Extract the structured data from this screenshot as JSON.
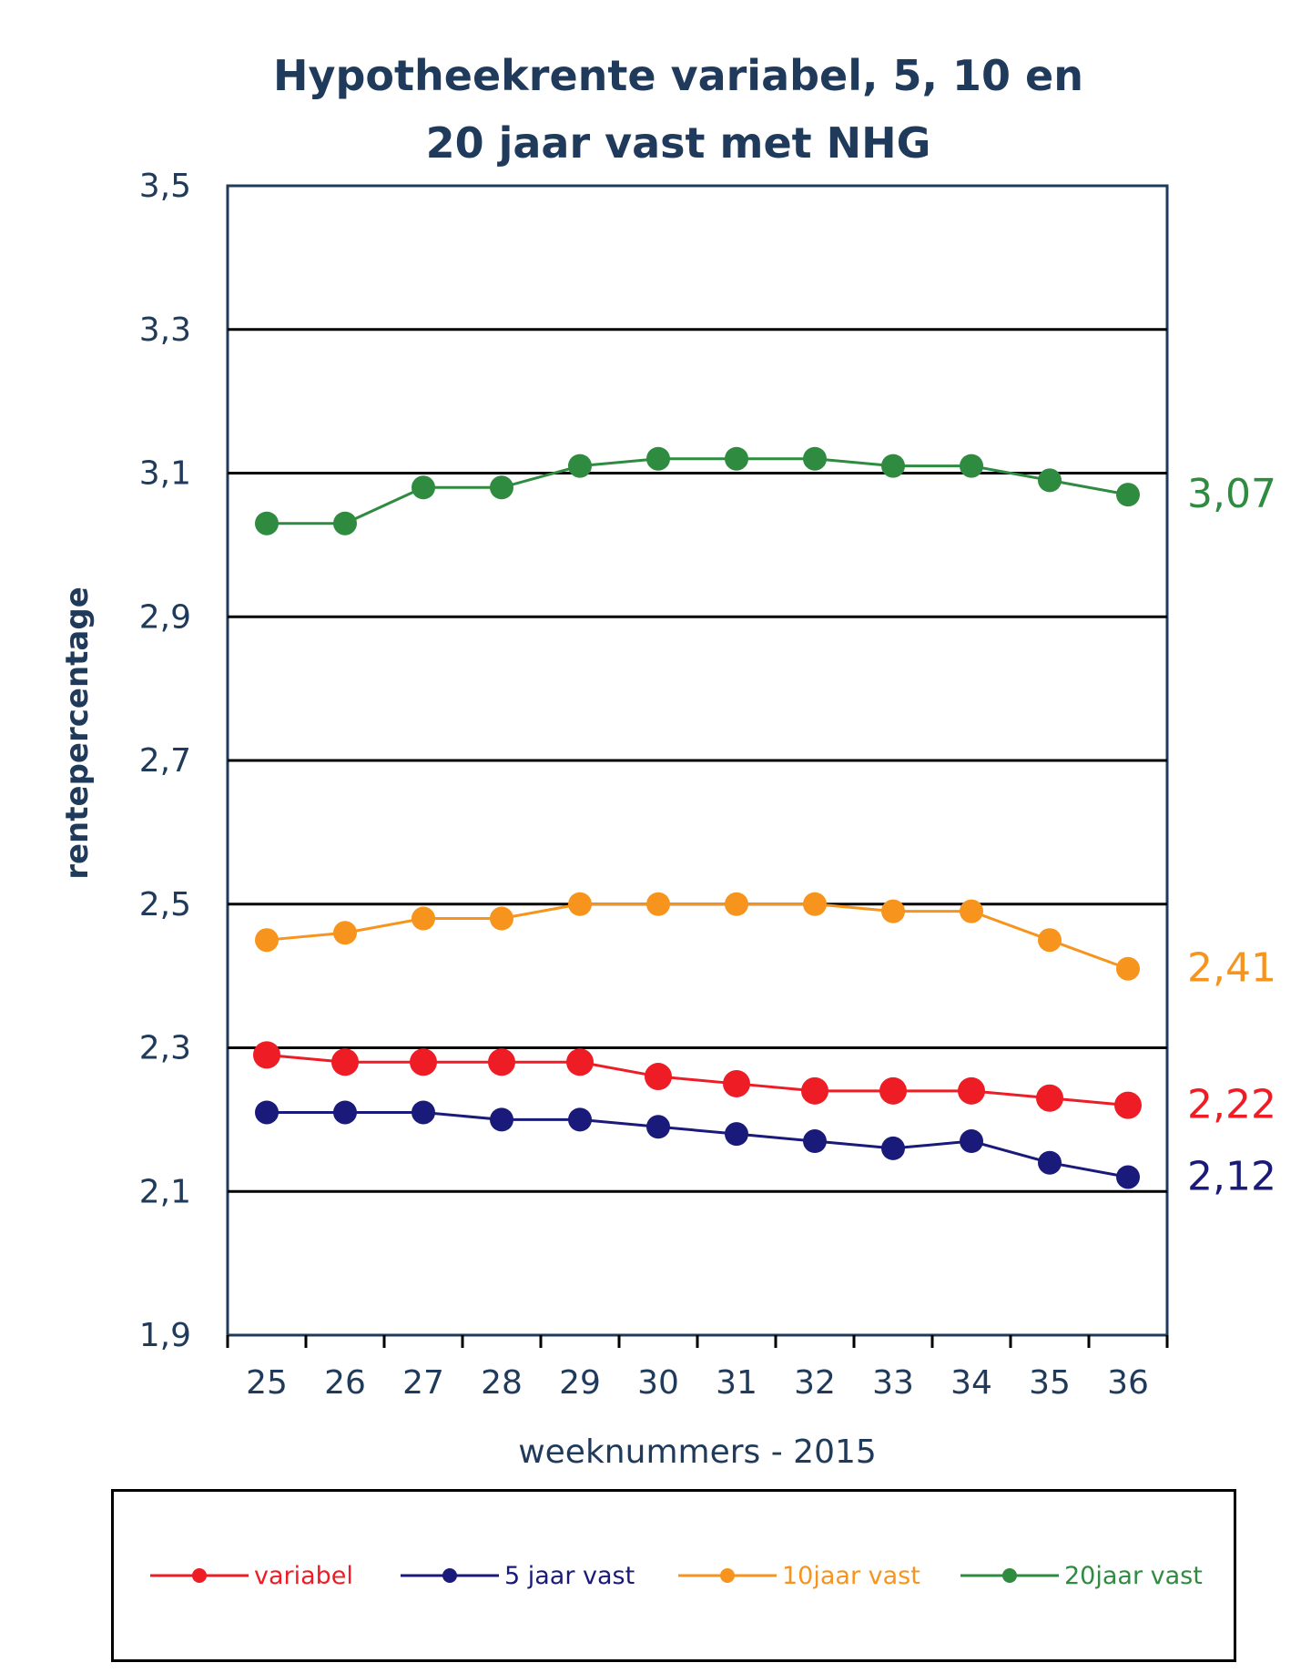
{
  "chart_data": {
    "type": "line",
    "title": [
      "Hypotheekrente variabel, 5, 10 en",
      "20 jaar vast met NHG"
    ],
    "xlabel": "weeknummers - 2015",
    "ylabel": "rentepercentage",
    "categories": [
      "25",
      "26",
      "27",
      "28",
      "29",
      "30",
      "31",
      "32",
      "33",
      "34",
      "35",
      "36"
    ],
    "ylim": [
      1.9,
      3.5
    ],
    "yticks": [
      "1,9",
      "2,1",
      "2,3",
      "2,5",
      "2,7",
      "2,9",
      "3,1",
      "3,3",
      "3,5"
    ],
    "grid": "horizontal",
    "legend_position": "bottom",
    "series": [
      {
        "name": "variabel",
        "color": "#ee1c25",
        "values": [
          2.29,
          2.28,
          2.28,
          2.28,
          2.28,
          2.26,
          2.25,
          2.24,
          2.24,
          2.24,
          2.23,
          2.22
        ],
        "end_label": "2,22"
      },
      {
        "name": "5 jaar vast",
        "color": "#1a1a7a",
        "values": [
          2.21,
          2.21,
          2.21,
          2.2,
          2.2,
          2.19,
          2.18,
          2.17,
          2.16,
          2.17,
          2.14,
          2.12
        ],
        "end_label": "2,12"
      },
      {
        "name": "10jaar vast",
        "color": "#f7941d",
        "values": [
          2.45,
          2.46,
          2.48,
          2.48,
          2.5,
          2.5,
          2.5,
          2.5,
          2.49,
          2.49,
          2.45,
          2.41
        ],
        "end_label": "2,41"
      },
      {
        "name": "20jaar vast",
        "color": "#2e8b40",
        "values": [
          3.03,
          3.03,
          3.08,
          3.08,
          3.11,
          3.12,
          3.12,
          3.12,
          3.11,
          3.11,
          3.09,
          3.07
        ],
        "end_label": "3,07"
      }
    ]
  }
}
